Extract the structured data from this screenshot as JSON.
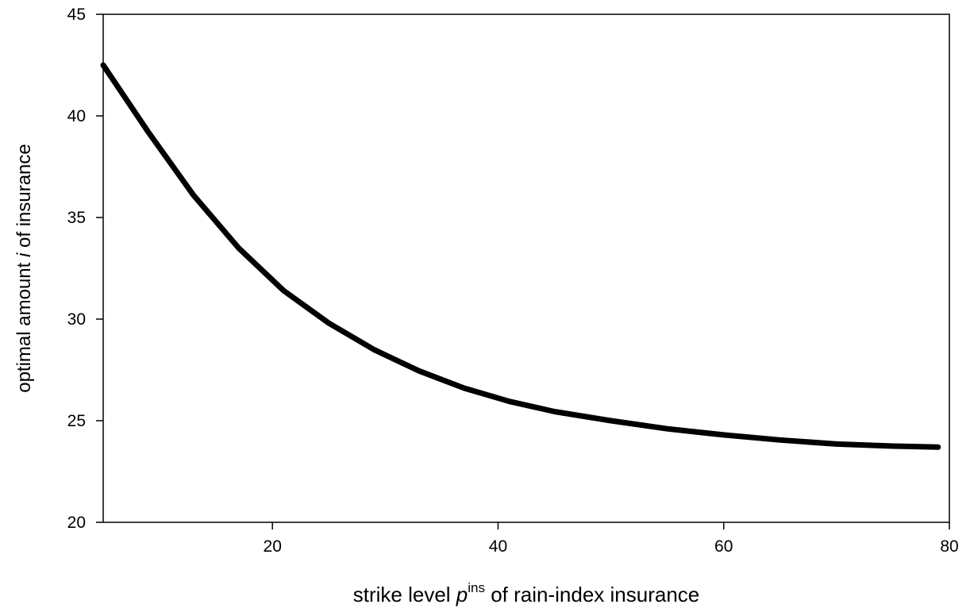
{
  "chart_data": {
    "type": "line",
    "xlabel": {
      "pre": "strike level ",
      "var": "p",
      "sup": "ins",
      "post": " of rain-index insurance"
    },
    "ylabel": {
      "pre": "optimal amount ",
      "var": "i",
      "post": " of insurance"
    },
    "xlim": [
      5,
      80
    ],
    "ylim": [
      20,
      45
    ],
    "xticks": [
      20,
      40,
      60,
      80
    ],
    "yticks": [
      20,
      25,
      30,
      35,
      40,
      45
    ],
    "grid": false,
    "series": [
      {
        "color": "#000000",
        "x": [
          5,
          9,
          13,
          17,
          21,
          25,
          29,
          33,
          37,
          41,
          45,
          50,
          55,
          60,
          65,
          70,
          75,
          79
        ],
        "y": [
          42.5,
          39.2,
          36.1,
          33.5,
          31.4,
          29.8,
          28.5,
          27.45,
          26.6,
          25.95,
          25.45,
          25.0,
          24.6,
          24.3,
          24.05,
          23.85,
          23.75,
          23.7
        ]
      }
    ]
  }
}
